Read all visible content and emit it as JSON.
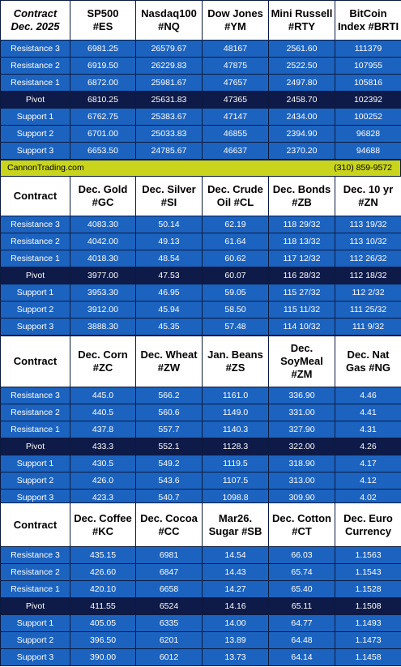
{
  "row_labels": [
    "Resistance 3",
    "Resistance 2",
    "Resistance 1",
    "Pivot",
    "Support 1",
    "Support 2",
    "Support 3"
  ],
  "block1": {
    "corner": [
      "Contract",
      "Dec. 2025"
    ],
    "headers": [
      [
        "SP500",
        "#ES"
      ],
      [
        "Nasdaq100",
        "#NQ"
      ],
      [
        "Dow Jones",
        "#YM"
      ],
      [
        "Mini Russell",
        "#RTY"
      ],
      [
        "BitCoin",
        "Index #BRTI"
      ]
    ],
    "rows": [
      [
        "6981.25",
        "26579.67",
        "48167",
        "2561.60",
        "111379"
      ],
      [
        "6919.50",
        "26229.83",
        "47875",
        "2522.50",
        "107955"
      ],
      [
        "6872.00",
        "25981.67",
        "47657",
        "2497.80",
        "105816"
      ],
      [
        "6810.25",
        "25631.83",
        "47365",
        "2458.70",
        "102392"
      ],
      [
        "6762.75",
        "25383.67",
        "47147",
        "2434.00",
        "100252"
      ],
      [
        "6701.00",
        "25033.83",
        "46855",
        "2394.90",
        "96828"
      ],
      [
        "6653.50",
        "24785.67",
        "46637",
        "2370.20",
        "94688"
      ]
    ]
  },
  "band": {
    "left": "CannonTrading.com",
    "right": "(310) 859-9572"
  },
  "block2": {
    "corner": [
      "Contract"
    ],
    "headers": [
      [
        "Dec. Gold",
        "#GC"
      ],
      [
        "Dec. Silver",
        "#SI"
      ],
      [
        "Dec. Crude",
        "Oil #CL"
      ],
      [
        "Dec. Bonds",
        "#ZB"
      ],
      [
        "Dec. 10 yr",
        "#ZN"
      ]
    ],
    "rows": [
      [
        "4083.30",
        "50.14",
        "62.19",
        "118 29/32",
        "113 19/32"
      ],
      [
        "4042.00",
        "49.13",
        "61.64",
        "118 13/32",
        "113 10/32"
      ],
      [
        "4018.30",
        "48.54",
        "60.62",
        "117 12/32",
        "112 26/32"
      ],
      [
        "3977.00",
        "47.53",
        "60.07",
        "116 28/32",
        "112 18/32"
      ],
      [
        "3953.30",
        "46.95",
        "59.05",
        "115 27/32",
        "112  2/32"
      ],
      [
        "3912.00",
        "45.94",
        "58.50",
        "115 11/32",
        "111 25/32"
      ],
      [
        "3888.30",
        "45.35",
        "57.48",
        "114 10/32",
        "111  9/32"
      ]
    ]
  },
  "block3": {
    "corner": [
      "Contract"
    ],
    "headers": [
      [
        "Dec. Corn",
        "#ZC"
      ],
      [
        "Dec.  Wheat",
        "#ZW"
      ],
      [
        "Jan. Beans",
        "#ZS"
      ],
      [
        "Dec.",
        "SoyMeal",
        "#ZM"
      ],
      [
        "Dec. Nat",
        "Gas #NG"
      ]
    ],
    "rows": [
      [
        "445.0",
        "566.2",
        "1161.0",
        "336.90",
        "4.46"
      ],
      [
        "440.5",
        "560.6",
        "1149.0",
        "331.00",
        "4.41"
      ],
      [
        "437.8",
        "557.7",
        "1140.3",
        "327.90",
        "4.31"
      ],
      [
        "433.3",
        "552.1",
        "1128.3",
        "322.00",
        "4.26"
      ],
      [
        "430.5",
        "549.2",
        "1119.5",
        "318.90",
        "4.17"
      ],
      [
        "426.0",
        "543.6",
        "1107.5",
        "313.00",
        "4.12"
      ],
      [
        "423.3",
        "540.7",
        "1098.8",
        "309.90",
        "4.02"
      ]
    ]
  },
  "block4": {
    "corner": [
      "Contract"
    ],
    "headers": [
      [
        "Dec. Coffee",
        "#KC"
      ],
      [
        "Dec. Cocoa",
        "#CC"
      ],
      [
        "Mar26.",
        "Sugar #SB"
      ],
      [
        "Dec. Cotton",
        "#CT"
      ],
      [
        "Dec. Euro",
        "Currency"
      ]
    ],
    "rows": [
      [
        "435.15",
        "6981",
        "14.54",
        "66.03",
        "1.1563"
      ],
      [
        "426.60",
        "6847",
        "14.43",
        "65.74",
        "1.1543"
      ],
      [
        "420.10",
        "6658",
        "14.27",
        "65.40",
        "1.1528"
      ],
      [
        "411.55",
        "6524",
        "14.16",
        "65.11",
        "1.1508"
      ],
      [
        "405.05",
        "6335",
        "14.00",
        "64.77",
        "1.1493"
      ],
      [
        "396.50",
        "6201",
        "13.89",
        "64.48",
        "1.1473"
      ],
      [
        "390.00",
        "6012",
        "13.73",
        "64.14",
        "1.1458"
      ]
    ]
  }
}
